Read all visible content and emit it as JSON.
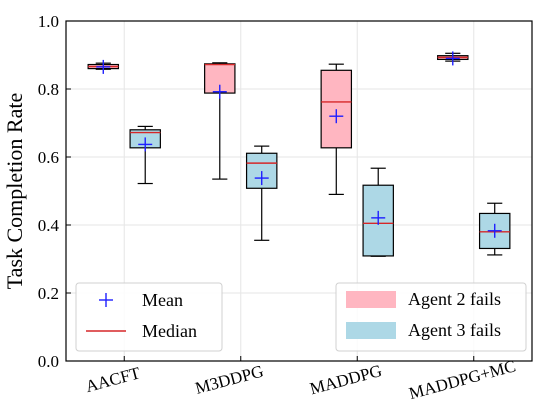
{
  "chart_data": {
    "type": "box",
    "categories": [
      "AACFT",
      "M3DDPG",
      "MADDPG",
      "MADDPG+MC"
    ],
    "ylabel": "Task Completion Rate",
    "xlabel": "",
    "ylim": [
      0.0,
      1.0
    ],
    "yticks": [
      "0.0",
      "0.2",
      "0.4",
      "0.6",
      "0.8",
      "1.0"
    ],
    "grid": true,
    "series": [
      {
        "name": "Agent 2 fails",
        "color": "#ffb6c1",
        "boxes": [
          {
            "whisker_low": 0.858,
            "q1": 0.86,
            "median": 0.866,
            "q3": 0.872,
            "whisker_high": 0.876,
            "mean": 0.865
          },
          {
            "whisker_low": 0.535,
            "q1": 0.788,
            "median": 0.872,
            "q3": 0.874,
            "whisker_high": 0.877,
            "mean": 0.792
          },
          {
            "whisker_low": 0.49,
            "q1": 0.627,
            "median": 0.762,
            "q3": 0.855,
            "whisker_high": 0.873,
            "mean": 0.72
          },
          {
            "whisker_low": 0.882,
            "q1": 0.887,
            "median": 0.893,
            "q3": 0.898,
            "whisker_high": 0.905,
            "mean": 0.89
          }
        ]
      },
      {
        "name": "Agent 3 fails",
        "color": "#add8e6",
        "boxes": [
          {
            "whisker_low": 0.522,
            "q1": 0.627,
            "median": 0.672,
            "q3": 0.68,
            "whisker_high": 0.69,
            "mean": 0.637
          },
          {
            "whisker_low": 0.355,
            "q1": 0.508,
            "median": 0.582,
            "q3": 0.611,
            "whisker_high": 0.632,
            "mean": 0.538
          },
          {
            "whisker_low": 0.308,
            "q1": 0.309,
            "median": 0.405,
            "q3": 0.517,
            "whisker_high": 0.567,
            "mean": 0.421
          },
          {
            "whisker_low": 0.312,
            "q1": 0.331,
            "median": 0.38,
            "q3": 0.434,
            "whisker_high": 0.464,
            "mean": 0.383
          }
        ]
      }
    ],
    "mean_marker": {
      "label": "Mean",
      "color": "#1f1fff"
    },
    "median_line": {
      "label": "Median",
      "color": "#d62728"
    },
    "legend_left_placement": "lower-left",
    "legend_right_placement": "lower-right"
  }
}
